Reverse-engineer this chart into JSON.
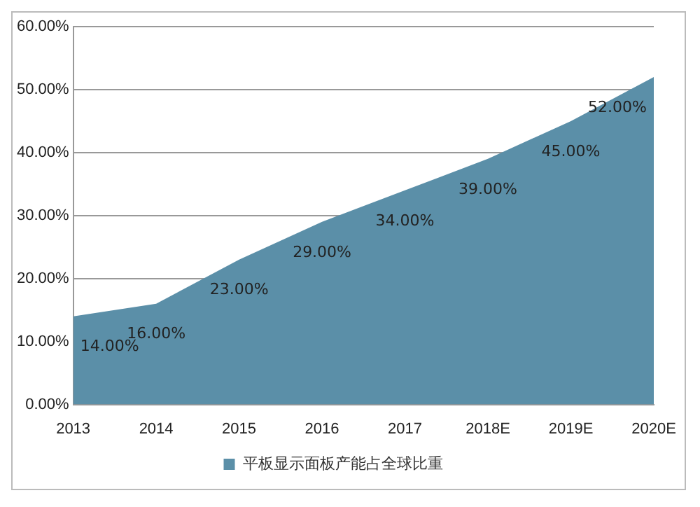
{
  "chart_data": {
    "type": "area",
    "categories": [
      "2013",
      "2014",
      "2015",
      "2016",
      "2017",
      "2018E",
      "2019E",
      "2020E"
    ],
    "series": [
      {
        "name": "平板显示面板产能占全球比重",
        "color": "#5b8fa8",
        "values": [
          14,
          16,
          23,
          29,
          34,
          39,
          45,
          52
        ],
        "value_labels": [
          "14.00%",
          "16.00%",
          "23.00%",
          "29.00%",
          "34.00%",
          "39.00%",
          "45.00%",
          "52.00%"
        ]
      }
    ],
    "ylim": [
      0,
      60
    ],
    "yticks": [
      {
        "value": 0,
        "label": "0.00%"
      },
      {
        "value": 10,
        "label": "10.00%"
      },
      {
        "value": 20,
        "label": "20.00%"
      },
      {
        "value": 30,
        "label": "30.00%"
      },
      {
        "value": 40,
        "label": "40.00%"
      },
      {
        "value": 50,
        "label": "50.00%"
      },
      {
        "value": 60,
        "label": "60.00%"
      }
    ],
    "grid": "y",
    "legend": "bottom"
  }
}
